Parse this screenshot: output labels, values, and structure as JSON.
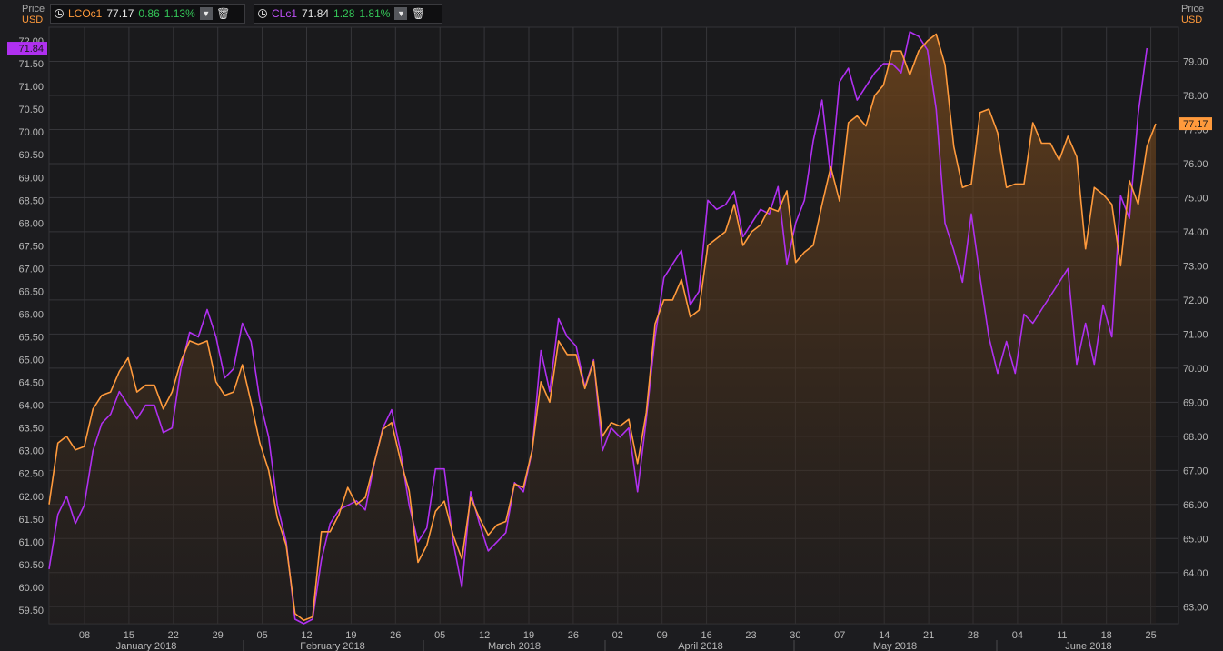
{
  "legend": [
    {
      "ric": "LCOc1",
      "last": "77.17",
      "change": "0.86",
      "pct": "1.13%",
      "color": "#ff9a3c"
    },
    {
      "ric": "CLc1",
      "last": "71.84",
      "change": "1.28",
      "pct": "1.81%",
      "color": "#b030f0"
    }
  ],
  "axis_left_head": {
    "price": "Price",
    "unit": "USD"
  },
  "axis_right_head": {
    "price": "Price",
    "unit": "USD"
  },
  "icons": {
    "clock": "clock-icon",
    "dropdown": "chevron-down-icon",
    "delete": "trash-icon"
  },
  "colors": {
    "background": "#1c1c1f",
    "grid": "#36363a",
    "brent": "#ff9a3c",
    "wti": "#b030f0",
    "axis_text": "#b9b9b9"
  },
  "chart_data": {
    "type": "line",
    "left_axis": {
      "series": "CLc1",
      "ticks": [
        "59.50",
        "60.00",
        "60.50",
        "61.00",
        "61.50",
        "62.00",
        "62.50",
        "63.00",
        "63.50",
        "64.00",
        "64.50",
        "65.00",
        "65.50",
        "66.00",
        "66.50",
        "67.00",
        "67.50",
        "68.00",
        "68.50",
        "69.00",
        "69.50",
        "70.00",
        "70.50",
        "71.00",
        "71.50",
        "72.00"
      ],
      "range": [
        59.2,
        72.3
      ]
    },
    "right_axis": {
      "series": "LCOc1",
      "ticks": [
        "63.00",
        "64.00",
        "65.00",
        "66.00",
        "67.00",
        "68.00",
        "69.00",
        "70.00",
        "71.00",
        "72.00",
        "73.00",
        "74.00",
        "75.00",
        "76.00",
        "77.00",
        "78.00",
        "79.00"
      ],
      "range": [
        62.5,
        80.0
      ]
    },
    "x_ticks": [
      "08",
      "15",
      "22",
      "29",
      "05",
      "12",
      "19",
      "26",
      "05",
      "12",
      "19",
      "26",
      "02",
      "09",
      "16",
      "23",
      "30",
      "07",
      "14",
      "21",
      "28",
      "04",
      "11",
      "18",
      "25"
    ],
    "months": [
      "January 2018",
      "February 2018",
      "March 2018",
      "April 2018",
      "May 2018",
      "June 2018"
    ],
    "last_labels": {
      "CLc1": "71.84",
      "LCOc1": "77.17"
    },
    "series": [
      {
        "name": "LCOc1",
        "axis": "right",
        "values": [
          66.0,
          67.8,
          68.0,
          67.6,
          67.7,
          68.8,
          69.2,
          69.3,
          69.9,
          70.3,
          69.3,
          69.5,
          69.5,
          68.8,
          69.3,
          70.2,
          70.8,
          70.7,
          70.8,
          69.6,
          69.2,
          69.3,
          70.1,
          69.0,
          67.8,
          67.0,
          65.6,
          64.8,
          62.8,
          62.6,
          62.7,
          65.2,
          65.2,
          65.7,
          66.5,
          66.0,
          66.2,
          67.2,
          68.2,
          68.4,
          67.3,
          66.4,
          64.3,
          64.8,
          65.8,
          66.1,
          65.1,
          64.4,
          66.2,
          65.6,
          65.1,
          65.4,
          65.5,
          66.6,
          66.5,
          67.6,
          69.6,
          69.0,
          70.8,
          70.4,
          70.4,
          69.4,
          70.2,
          68.0,
          68.4,
          68.3,
          68.5,
          67.2,
          68.7,
          71.3,
          72.0,
          72.0,
          72.6,
          71.5,
          71.7,
          73.6,
          73.8,
          74.0,
          74.8,
          73.6,
          74.0,
          74.2,
          74.7,
          74.6,
          75.2,
          73.1,
          73.4,
          73.6,
          74.8,
          75.9,
          74.9,
          77.2,
          77.4,
          77.1,
          78.0,
          78.3,
          79.3,
          79.3,
          78.6,
          79.3,
          79.6,
          79.8,
          78.9,
          76.5,
          75.3,
          75.4,
          77.5,
          77.6,
          76.9,
          75.3,
          75.4,
          75.4,
          77.2,
          76.6,
          76.6,
          76.1,
          76.8,
          76.2,
          73.5,
          75.3,
          75.1,
          74.8,
          73.0,
          75.5,
          74.8,
          76.5,
          77.17
        ]
      },
      {
        "name": "CLc1",
        "axis": "left",
        "values": [
          60.4,
          61.6,
          62.0,
          61.4,
          61.8,
          63.0,
          63.6,
          63.8,
          64.3,
          64.0,
          63.7,
          64.0,
          64.0,
          63.4,
          63.5,
          64.8,
          65.6,
          65.5,
          66.1,
          65.5,
          64.6,
          64.8,
          65.8,
          65.4,
          64.1,
          63.3,
          61.8,
          61.0,
          59.3,
          59.2,
          59.3,
          60.6,
          61.4,
          61.7,
          61.8,
          61.9,
          61.7,
          62.7,
          63.5,
          63.9,
          63.0,
          61.8,
          61.0,
          61.3,
          62.6,
          62.6,
          61.0,
          60.0,
          62.1,
          61.4,
          60.8,
          61.0,
          61.2,
          62.3,
          62.1,
          63.0,
          65.2,
          64.3,
          65.9,
          65.5,
          65.3,
          64.4,
          65.0,
          63.0,
          63.5,
          63.3,
          63.5,
          62.1,
          63.7,
          65.5,
          66.8,
          67.1,
          67.4,
          66.2,
          66.5,
          68.5,
          68.3,
          68.4,
          68.7,
          67.7,
          68.0,
          68.3,
          68.2,
          68.8,
          67.1,
          68.0,
          68.5,
          69.8,
          70.7,
          69.0,
          71.1,
          71.4,
          70.7,
          71.0,
          71.3,
          71.5,
          71.5,
          71.3,
          72.2,
          72.1,
          71.8,
          70.5,
          68.0,
          67.4,
          66.7,
          68.2,
          66.8,
          65.5,
          64.7,
          65.4,
          64.7,
          66.0,
          65.8,
          66.1,
          66.4,
          66.7,
          67.0,
          64.9,
          65.8,
          64.9,
          66.2,
          65.5,
          68.6,
          68.1,
          70.4,
          71.84
        ]
      }
    ]
  }
}
